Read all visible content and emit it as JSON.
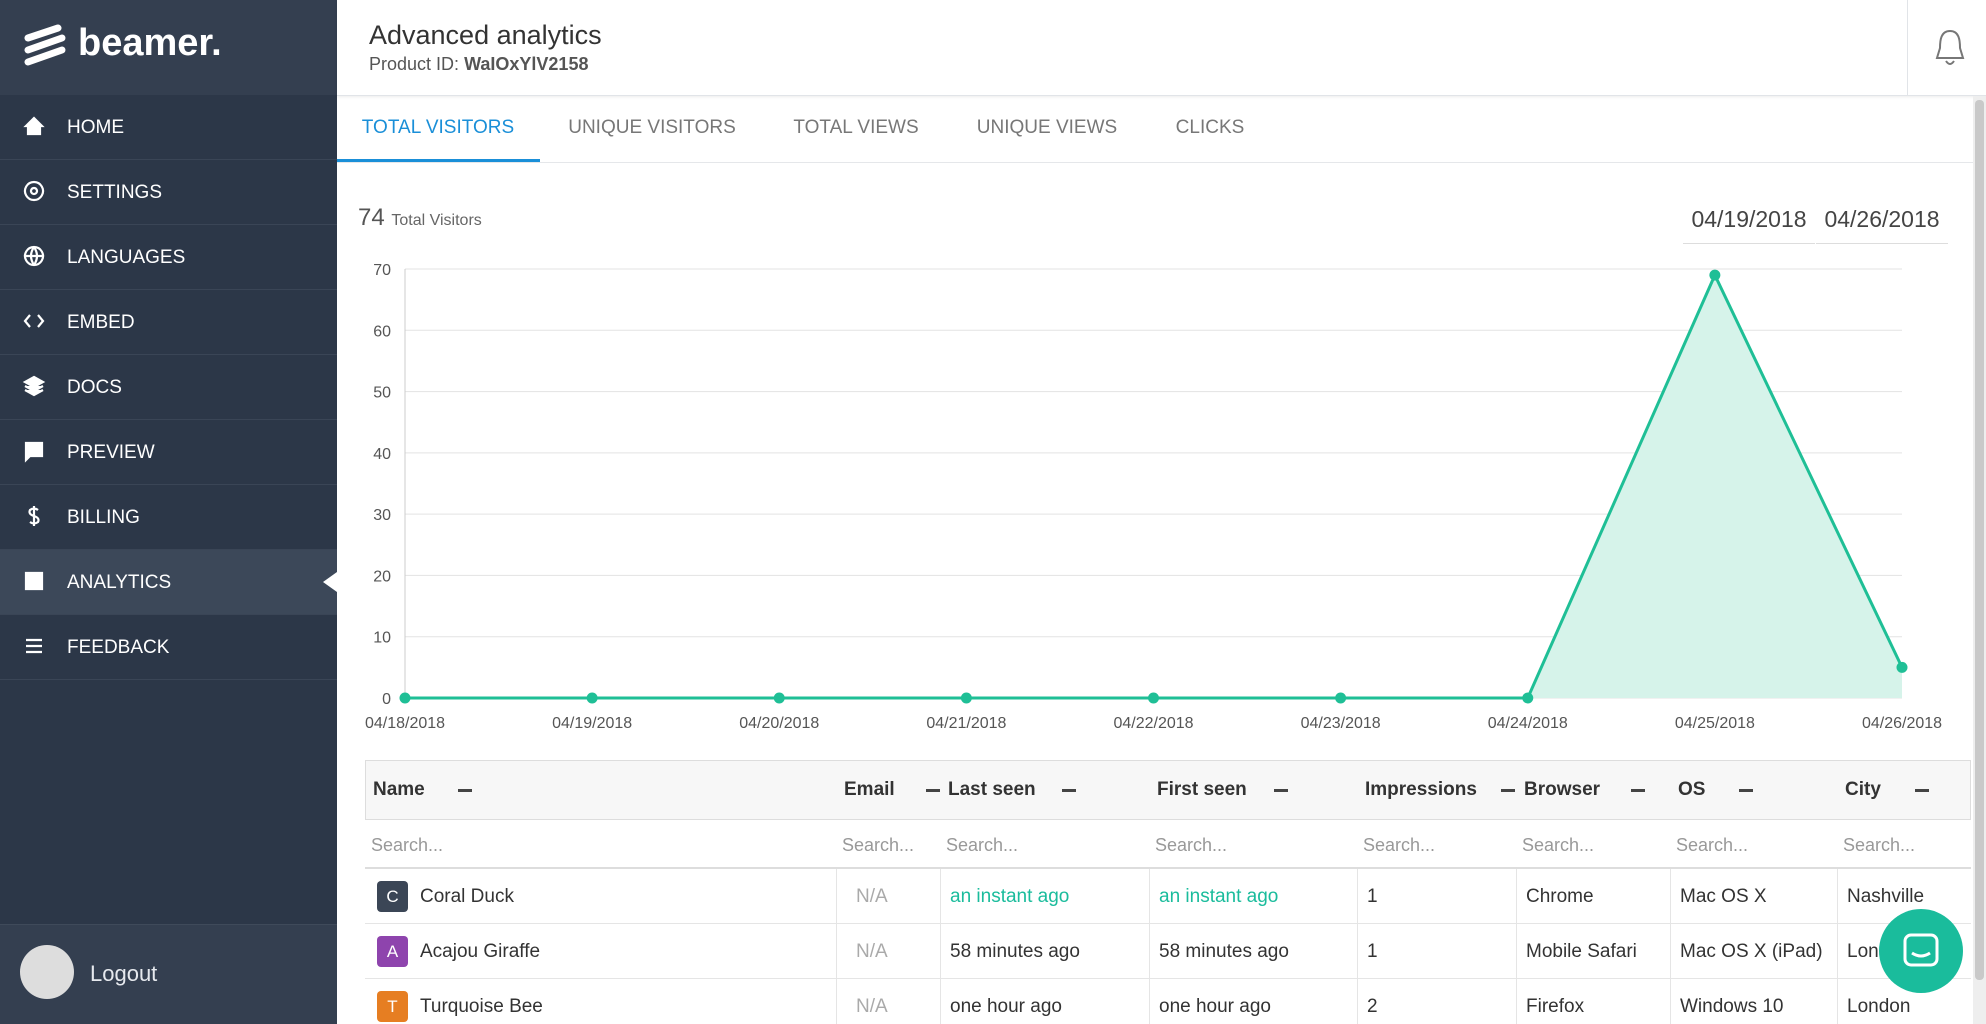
{
  "logo": "beamer.",
  "menu": [
    "HOME",
    "SETTINGS",
    "LANGUAGES",
    "EMBED",
    "DOCS",
    "PREVIEW",
    "BILLING",
    "ANALYTICS",
    "FEEDBACK"
  ],
  "logout": "Logout",
  "header": {
    "title": "Advanced analytics",
    "product_id_label": "Product ID:",
    "product_id": "WaIOxYlV2158"
  },
  "tabs": [
    "TOTAL VISITORS",
    "UNIQUE VISITORS",
    "TOTAL VIEWS",
    "UNIQUE VIEWS",
    "CLICKS"
  ],
  "chart_data": {
    "type": "line",
    "total": 74,
    "total_label": "Total Visitors",
    "date_range": [
      "04/19/2018",
      "04/26/2018"
    ],
    "categories": [
      "04/18/2018",
      "04/19/2018",
      "04/20/2018",
      "04/21/2018",
      "04/22/2018",
      "04/23/2018",
      "04/24/2018",
      "04/25/2018",
      "04/26/2018"
    ],
    "values": [
      0,
      0,
      0,
      0,
      0,
      0,
      0,
      69,
      5
    ],
    "color": "#1fbf96",
    "fill": "#d6f3ea",
    "ylim": [
      0,
      70
    ],
    "yticks": [
      0,
      10,
      20,
      30,
      40,
      50,
      60,
      70
    ],
    "grid": true
  },
  "table": {
    "columns": [
      "Name",
      "Email",
      "Last seen",
      "First seen",
      "Impressions",
      "Browser",
      "OS",
      "City"
    ],
    "search_placeholder": "Search...",
    "avatar_colors": [
      "#3b4656",
      "#8e44ad",
      "#e67e22"
    ],
    "rows": [
      [
        "C",
        "Coral Duck",
        "N/A",
        "an instant ago",
        "an instant ago",
        1,
        "Chrome",
        "Mac OS X",
        "Nashville"
      ],
      [
        "A",
        "Acajou Giraffe",
        "N/A",
        "58 minutes ago",
        "58 minutes ago",
        1,
        "Mobile Safari",
        "Mac OS X (iPad)",
        "London"
      ],
      [
        "T",
        "Turquoise Bee",
        "N/A",
        "one hour ago",
        "one hour ago",
        2,
        "Firefox",
        "Windows 10",
        "London"
      ]
    ]
  }
}
